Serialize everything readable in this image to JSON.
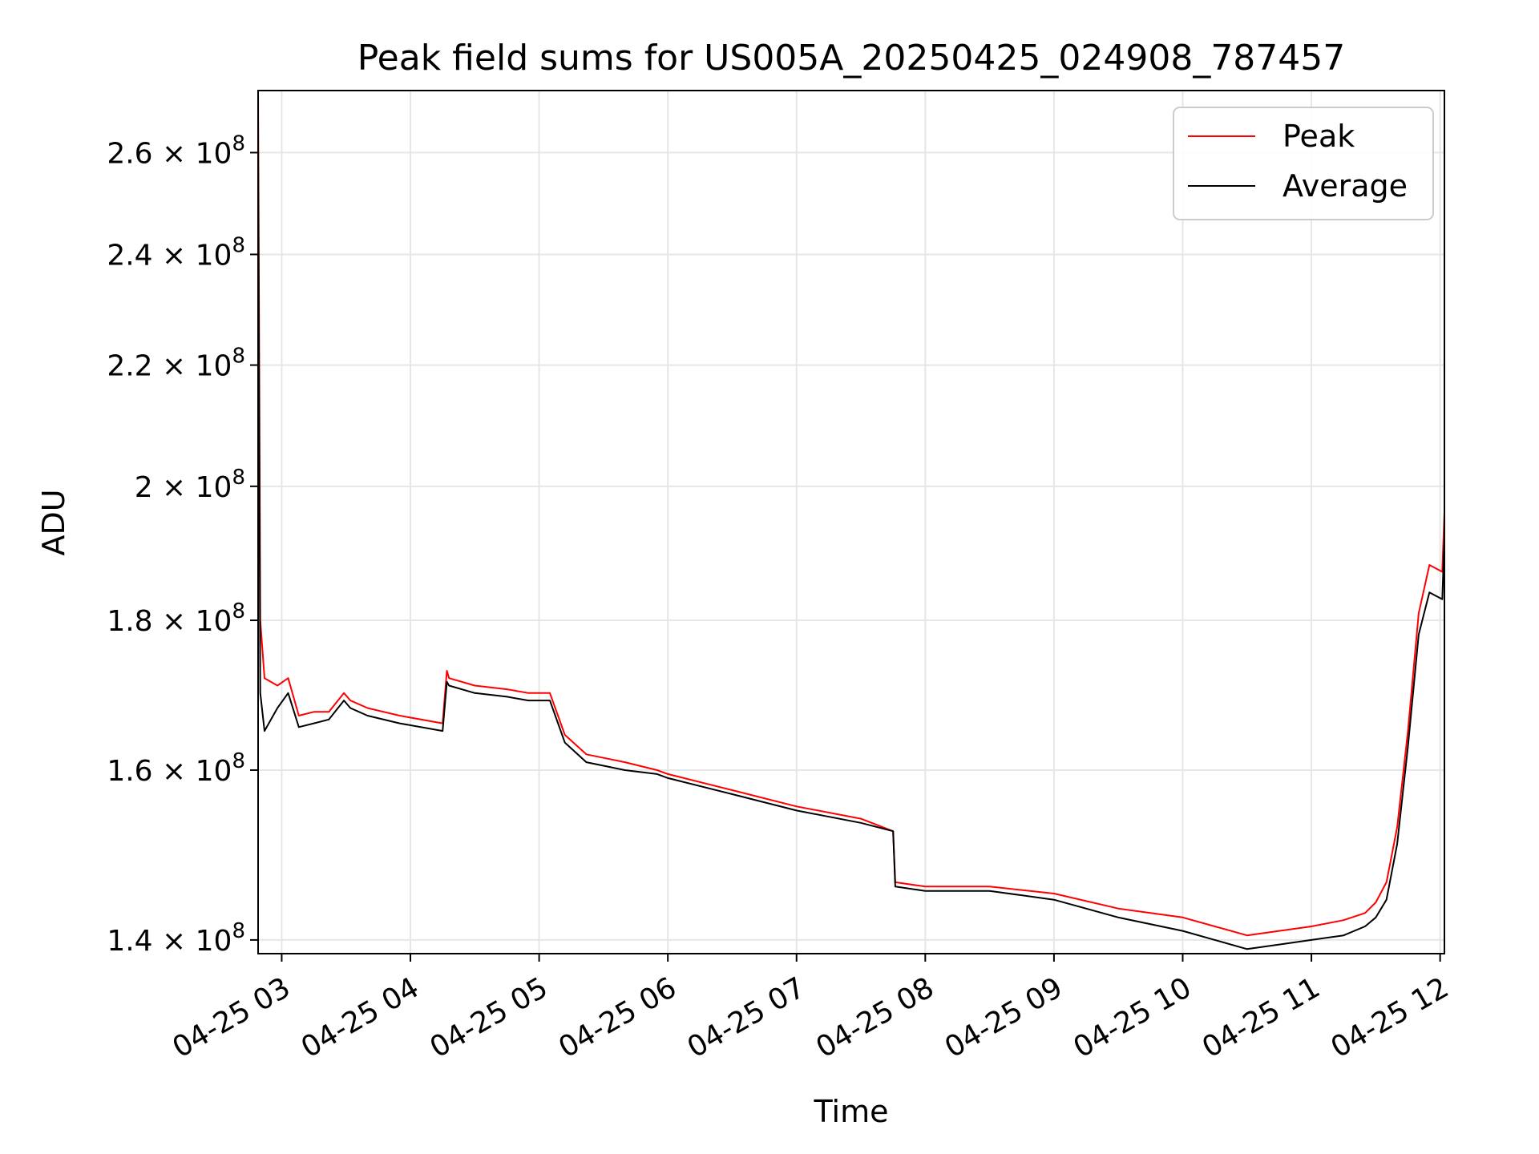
{
  "chart_data": {
    "type": "line",
    "title": "Peak field sums for US005A_20250425_024908_787457",
    "xlabel": "Time",
    "ylabel": "ADU",
    "y_scale": "log",
    "grid": true,
    "legend_position": "top-right",
    "xlim": [
      "2025-04-25 02:49",
      "2025-04-25 12:02"
    ],
    "ylim": [
      138500000,
      273000000
    ],
    "x_ticks": [
      "2025-04-25 03:00",
      "2025-04-25 04:00",
      "2025-04-25 05:00",
      "2025-04-25 06:00",
      "2025-04-25 07:00",
      "2025-04-25 08:00",
      "2025-04-25 09:00",
      "2025-04-25 10:00",
      "2025-04-25 11:00",
      "2025-04-25 12:00"
    ],
    "x_tick_labels": [
      "04-25 03",
      "04-25 04",
      "04-25 05",
      "04-25 06",
      "04-25 07",
      "04-25 08",
      "04-25 09",
      "04-25 10",
      "04-25 11",
      "04-25 12"
    ],
    "y_ticks": [
      140000000,
      160000000,
      180000000,
      200000000,
      220000000,
      240000000,
      260000000
    ],
    "y_tick_labels": [
      {
        "mantissa": "1.4",
        "exponent": "8"
      },
      {
        "mantissa": "1.6",
        "exponent": "8"
      },
      {
        "mantissa": "1.8",
        "exponent": "8"
      },
      {
        "mantissa": "2",
        "exponent": "8"
      },
      {
        "mantissa": "2.2",
        "exponent": "8"
      },
      {
        "mantissa": "2.4",
        "exponent": "8"
      },
      {
        "mantissa": "2.6",
        "exponent": "8"
      }
    ],
    "y_tick_multiplier": "× 10",
    "x": [
      "2025-04-25 02:49",
      "2025-04-25 02:50",
      "2025-04-25 02:52",
      "2025-04-25 02:58",
      "2025-04-25 03:03",
      "2025-04-25 03:08",
      "2025-04-25 03:15",
      "2025-04-25 03:22",
      "2025-04-25 03:29",
      "2025-04-25 03:32",
      "2025-04-25 03:40",
      "2025-04-25 03:55",
      "2025-04-25 04:15",
      "2025-04-25 04:17",
      "2025-04-25 04:18",
      "2025-04-25 04:30",
      "2025-04-25 04:45",
      "2025-04-25 04:55",
      "2025-04-25 05:05",
      "2025-04-25 05:12",
      "2025-04-25 05:22",
      "2025-04-25 05:40",
      "2025-04-25 05:55",
      "2025-04-25 06:00",
      "2025-04-25 06:30",
      "2025-04-25 07:00",
      "2025-04-25 07:30",
      "2025-04-25 07:45",
      "2025-04-25 07:46",
      "2025-04-25 08:00",
      "2025-04-25 08:30",
      "2025-04-25 09:00",
      "2025-04-25 09:30",
      "2025-04-25 10:00",
      "2025-04-25 10:15",
      "2025-04-25 10:30",
      "2025-04-25 10:45",
      "2025-04-25 11:00",
      "2025-04-25 11:15",
      "2025-04-25 11:25",
      "2025-04-25 11:30",
      "2025-04-25 11:35",
      "2025-04-25 11:40",
      "2025-04-25 11:45",
      "2025-04-25 11:50",
      "2025-04-25 11:55",
      "2025-04-25 12:01",
      "2025-04-25 12:02"
    ],
    "series": [
      {
        "name": "Peak",
        "color": "#ff0000",
        "values": [
          273000000,
          180000000,
          172000000,
          171000000,
          172000000,
          167000000,
          167500000,
          167500000,
          170000000,
          169000000,
          168000000,
          167000000,
          166000000,
          173000000,
          172000000,
          171000000,
          170500000,
          170000000,
          170000000,
          164500000,
          162000000,
          161000000,
          160000000,
          159500000,
          157500000,
          155500000,
          154000000,
          152500000,
          146500000,
          146000000,
          146000000,
          145200000,
          143500000,
          142500000,
          141500000,
          140500000,
          141000000,
          141500000,
          142200000,
          143000000,
          144200000,
          146500000,
          153000000,
          165000000,
          181000000,
          188000000,
          187000000,
          196000000
        ]
      },
      {
        "name": "Average",
        "color": "#000000",
        "values": [
          262000000,
          170000000,
          165000000,
          168000000,
          170000000,
          165500000,
          166000000,
          166500000,
          169000000,
          168000000,
          167000000,
          166000000,
          165000000,
          171500000,
          171000000,
          170000000,
          169500000,
          169000000,
          169000000,
          163500000,
          161000000,
          160000000,
          159500000,
          159000000,
          157000000,
          155000000,
          153500000,
          152500000,
          146000000,
          145500000,
          145500000,
          144500000,
          142500000,
          141000000,
          140000000,
          139000000,
          139500000,
          140000000,
          140500000,
          141500000,
          142500000,
          144500000,
          151000000,
          163000000,
          178000000,
          184000000,
          183000000,
          192000000
        ]
      }
    ]
  }
}
